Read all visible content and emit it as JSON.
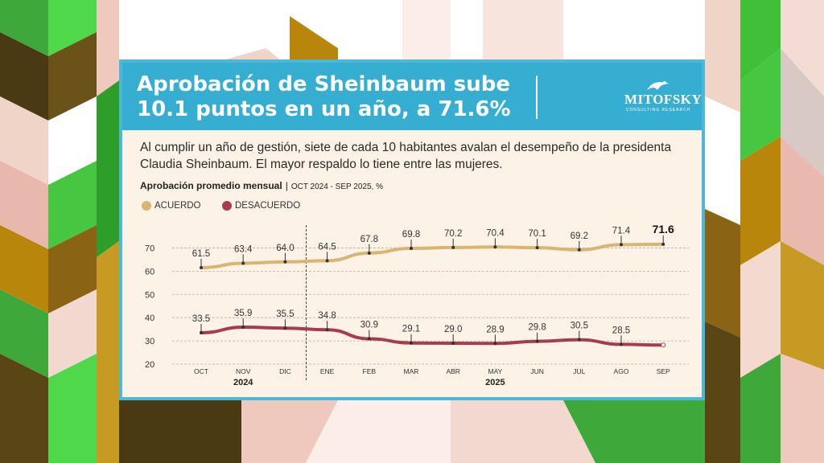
{
  "title": "Aprobación de Sheinbaum sube 10.1 puntos en un año, a 71.6%",
  "logo": {
    "name": "MITOFSKY",
    "sub": "CONSULTING RESEARCH"
  },
  "description": "Al cumplir un año de gestión, siete de cada 10 habitantes avalan el desempeño de la presidenta Claudia Sheinbaum. El mayor respaldo lo tiene entre las mujeres.",
  "subheading": {
    "label": "Aprobación promedio mensual",
    "range": "OCT 2024 - SEP 2025, %"
  },
  "colors": {
    "header": "#35aed2",
    "card": "#fdf2e6",
    "acuerdo": "#d8b575",
    "desacuerdo": "#a63d4f"
  },
  "chart_data": {
    "type": "line",
    "categories": [
      "OCT",
      "NOV",
      "DIC",
      "ENE",
      "FEB",
      "MAR",
      "ABR",
      "MAY",
      "JUN",
      "JUL",
      "AGO",
      "SEP"
    ],
    "years": [
      {
        "label": "2024",
        "from": 0,
        "to": 2
      },
      {
        "label": "2025",
        "from": 3,
        "to": 11
      }
    ],
    "series": [
      {
        "name": "ACUERDO",
        "color": "#d8b575",
        "labels": [
          "61.5",
          "63.4",
          "64.0",
          "64.5",
          "67.8",
          "69.8",
          "70.2",
          "70.4",
          "70.1",
          "69.2",
          "71.4",
          "71.6"
        ],
        "values": [
          61.5,
          63.4,
          64.0,
          64.5,
          67.8,
          69.8,
          70.2,
          70.4,
          70.1,
          69.2,
          71.4,
          71.6
        ]
      },
      {
        "name": "DESACUERDO",
        "color": "#a63d4f",
        "labels": [
          "33.5",
          "35.9",
          "35.5",
          "34.8",
          "30.9",
          "29.1",
          "29.0",
          "28.9",
          "29.8",
          "30.5",
          "28.5",
          ""
        ],
        "values": [
          33.5,
          35.9,
          35.5,
          34.8,
          30.9,
          29.1,
          29.0,
          28.9,
          29.8,
          30.5,
          28.5,
          28.2
        ]
      }
    ],
    "yticks": [
      20,
      30,
      40,
      50,
      60,
      70
    ],
    "ylim": [
      20,
      75
    ],
    "grid": true
  }
}
